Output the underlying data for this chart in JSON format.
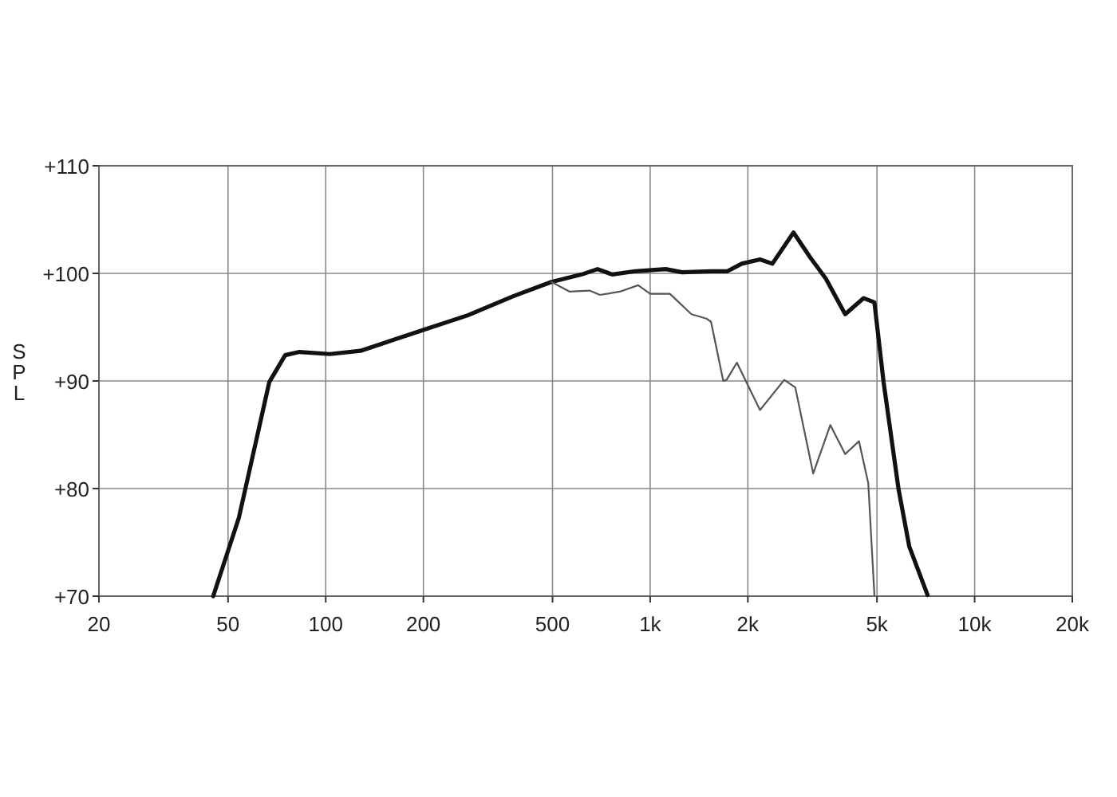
{
  "chart_data": {
    "type": "line",
    "ylabel": "SPL",
    "log": "x",
    "grid": true,
    "line_style": "solid",
    "xlim": [
      20,
      20000
    ],
    "ylim": [
      70,
      110
    ],
    "xticks": [
      20,
      50,
      100,
      200,
      500,
      {
        "value": 1000,
        "label": "1k"
      },
      {
        "value": 2000,
        "label": "2k"
      },
      {
        "value": 5000,
        "label": "5k"
      },
      {
        "value": 10000,
        "label": "10k"
      },
      {
        "value": 20000,
        "label": "20k"
      }
    ],
    "yticks": [
      {
        "value": 70,
        "label": "+70"
      },
      {
        "value": 80,
        "label": "+80"
      },
      {
        "value": 90,
        "label": "+90"
      },
      {
        "value": 100,
        "label": "+100"
      },
      {
        "value": 110,
        "label": "+110"
      }
    ],
    "series": [
      {
        "color": "#111111",
        "x": [
          45,
          54,
          67,
          75,
          83,
          103,
          128,
          198,
          274,
          380,
          496,
          615,
          688,
          764,
          900,
          1115,
          1255,
          1540,
          1730,
          1915,
          2180,
          2380,
          2765,
          3110,
          3480,
          3990,
          4550,
          4910,
          5240,
          5830,
          6290,
          7160
        ],
        "values": [
          70,
          77.3,
          89.9,
          92.4,
          92.7,
          92.5,
          92.8,
          94.7,
          96.1,
          97.9,
          99.2,
          99.9,
          100.4,
          99.9,
          100.2,
          100.4,
          100.1,
          100.2,
          100.2,
          100.9,
          101.3,
          100.9,
          103.8,
          101.5,
          99.5,
          96.2,
          97.7,
          97.3,
          89.9,
          79.9,
          74.6,
          70.1
        ]
      },
      {
        "color": "#555555",
        "x": [
          496,
          565,
          650,
          700,
          806,
          918,
          1000,
          1150,
          1340,
          1490,
          1540,
          1680,
          1720,
          1850,
          2180,
          2590,
          2800,
          3180,
          3590,
          3990,
          4400,
          4700,
          4910
        ],
        "values": [
          99.2,
          98.3,
          98.4,
          98.0,
          98.3,
          98.9,
          98.1,
          98.1,
          96.2,
          95.8,
          95.5,
          90.0,
          90.1,
          91.7,
          87.3,
          90.1,
          89.4,
          81.4,
          85.9,
          83.2,
          84.4,
          80.5,
          70.1
        ]
      }
    ]
  }
}
